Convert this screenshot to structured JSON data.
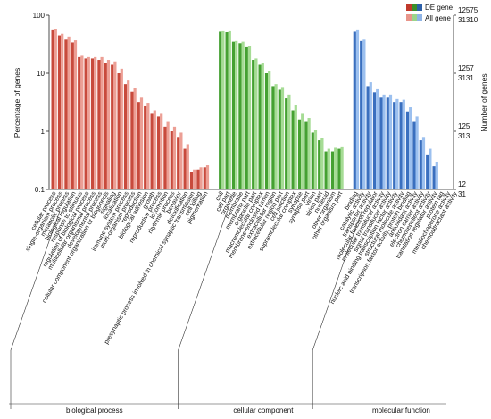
{
  "chart_data": {
    "type": "bar",
    "ylabel_left": "Percentage of genes",
    "ylabel_right": "Number of genes",
    "left_ticks": [
      {
        "value": 100,
        "label": "100"
      },
      {
        "value": 10,
        "label": "10"
      },
      {
        "value": 1,
        "label": "1"
      },
      {
        "value": 0.1,
        "label": "0.1"
      }
    ],
    "right_ticks": [
      {
        "value": 100,
        "de": "12575",
        "all": "31310"
      },
      {
        "value": 10,
        "de": "1257",
        "all": "3131"
      },
      {
        "value": 1,
        "de": "125",
        "all": "313"
      },
      {
        "value": 0.1,
        "de": "12",
        "all": "31"
      }
    ],
    "ylim": [
      0.1,
      100
    ],
    "yscale": "log",
    "legend": {
      "position": "top-right",
      "entries": [
        {
          "label": "DE gene",
          "colors": [
            "#c0392b",
            "#3a8f2a",
            "#2c5fa8"
          ]
        },
        {
          "label": "All gene",
          "colors": [
            "#e8958a",
            "#9bd48a",
            "#8fb4e6"
          ]
        }
      ]
    },
    "groups": [
      {
        "name": "biological process",
        "de_color": "#c84a3c",
        "all_color": "#ec9f95",
        "categories": [
          {
            "label": "cellular process",
            "de": 55,
            "all": 58
          },
          {
            "label": "single-organism process",
            "de": 45,
            "all": 48
          },
          {
            "label": "metabolic process",
            "de": 38,
            "all": 43
          },
          {
            "label": "biological regulation",
            "de": 34,
            "all": 37
          },
          {
            "label": "response to stimulus",
            "de": 19,
            "all": 20
          },
          {
            "label": "regulation of biological process",
            "de": 18,
            "all": 19
          },
          {
            "label": "multicellular organismal process",
            "de": 18,
            "all": 19
          },
          {
            "label": "developmental process",
            "de": 17,
            "all": 19
          },
          {
            "label": "cellular component organization or biogenesis",
            "de": 15,
            "all": 17
          },
          {
            "label": "signaling",
            "de": 14,
            "all": 16
          },
          {
            "label": "localization",
            "de": 10,
            "all": 12
          },
          {
            "label": "immune system process",
            "de": 6.5,
            "all": 7.5
          },
          {
            "label": "multi-organism process",
            "de": 4.8,
            "all": 5.6
          },
          {
            "label": "reproduction",
            "de": 3.2,
            "all": 3.8
          },
          {
            "label": "biological adhesion",
            "de": 2.7,
            "all": 3.1
          },
          {
            "label": "growth",
            "de": 2.0,
            "all": 2.3
          },
          {
            "label": "reproductive process",
            "de": 1.8,
            "all": 2.0
          },
          {
            "label": "locomotion",
            "de": 1.2,
            "all": 1.5
          },
          {
            "label": "rhythmic process",
            "de": 1.0,
            "all": 1.2
          },
          {
            "label": "behavior",
            "de": 0.8,
            "all": 0.95
          },
          {
            "label": "detoxification",
            "de": 0.5,
            "all": 0.6
          },
          {
            "label": "presynaptic process involved in chemical synaptic transmission",
            "de": 0.2,
            "all": 0.22
          },
          {
            "label": "cell killing",
            "de": 0.22,
            "all": 0.24
          },
          {
            "label": "pigmentation",
            "de": 0.24,
            "all": 0.26
          }
        ]
      },
      {
        "name": "cellular component",
        "de_color": "#45a132",
        "all_color": "#a6dc95",
        "categories": [
          {
            "label": "cell",
            "de": 52,
            "all": 53
          },
          {
            "label": "cell part",
            "de": 51,
            "all": 53
          },
          {
            "label": "organelle",
            "de": 35,
            "all": 36
          },
          {
            "label": "membrane",
            "de": 33,
            "all": 35
          },
          {
            "label": "membrane part",
            "de": 28,
            "all": 29
          },
          {
            "label": "organelle part",
            "de": 17,
            "all": 18
          },
          {
            "label": "macromolecular complex",
            "de": 14,
            "all": 15
          },
          {
            "label": "membrane-enclosed lumen",
            "de": 10,
            "all": 11
          },
          {
            "label": "extracellular region",
            "de": 6.0,
            "all": 6.5
          },
          {
            "label": "extracellular region part",
            "de": 5.2,
            "all": 5.8
          },
          {
            "label": "cell junction",
            "de": 3.7,
            "all": 4.3
          },
          {
            "label": "supramolecular complex",
            "de": 2.3,
            "all": 2.8
          },
          {
            "label": "synapse",
            "de": 1.6,
            "all": 2.0
          },
          {
            "label": "synapse part",
            "de": 1.5,
            "all": 1.7
          },
          {
            "label": "virion",
            "de": 0.95,
            "all": 1.05
          },
          {
            "label": "virion part",
            "de": 0.7,
            "all": 0.78
          },
          {
            "label": "nucleoid",
            "de": 0.45,
            "all": 0.5
          },
          {
            "label": "other organism",
            "de": 0.45,
            "all": 0.52
          },
          {
            "label": "other organism part",
            "de": 0.5,
            "all": 0.55
          }
        ]
      },
      {
        "name": "molecular function",
        "de_color": "#3a6fbf",
        "all_color": "#9cc0ef",
        "categories": [
          {
            "label": "binding",
            "de": 52,
            "all": 55
          },
          {
            "label": "catalytic activity",
            "de": 36,
            "all": 38
          },
          {
            "label": "transporter activity",
            "de": 6.0,
            "all": 7.0
          },
          {
            "label": "molecular function regulator",
            "de": 4.7,
            "all": 5.3
          },
          {
            "label": "molecular transducer activity",
            "de": 3.8,
            "all": 4.3
          },
          {
            "label": "signal transducer activity",
            "de": 3.8,
            "all": 4.3
          },
          {
            "label": "nucleic acid binding transcription factor activity",
            "de": 3.2,
            "all": 3.6
          },
          {
            "label": "structural molecule activity",
            "de": 3.2,
            "all": 3.5
          },
          {
            "label": "transcription factor activity, protein binding",
            "de": 2.2,
            "all": 2.6
          },
          {
            "label": "antioxidant activity",
            "de": 1.5,
            "all": 1.8
          },
          {
            "label": "electron carrier activity",
            "de": 0.7,
            "all": 0.8
          },
          {
            "label": "chemorepellent activity",
            "de": 0.4,
            "all": 0.5
          },
          {
            "label": "translation regulator activity",
            "de": 0.25,
            "all": 0.3
          },
          {
            "label": "protein tag",
            "de": 0.1,
            "all": 0.1
          },
          {
            "label": "metallochaperone activity",
            "de": 0.1,
            "all": 0.1
          },
          {
            "label": "chemoattractant activity",
            "de": 0.1,
            "all": 0.1
          }
        ]
      }
    ]
  }
}
